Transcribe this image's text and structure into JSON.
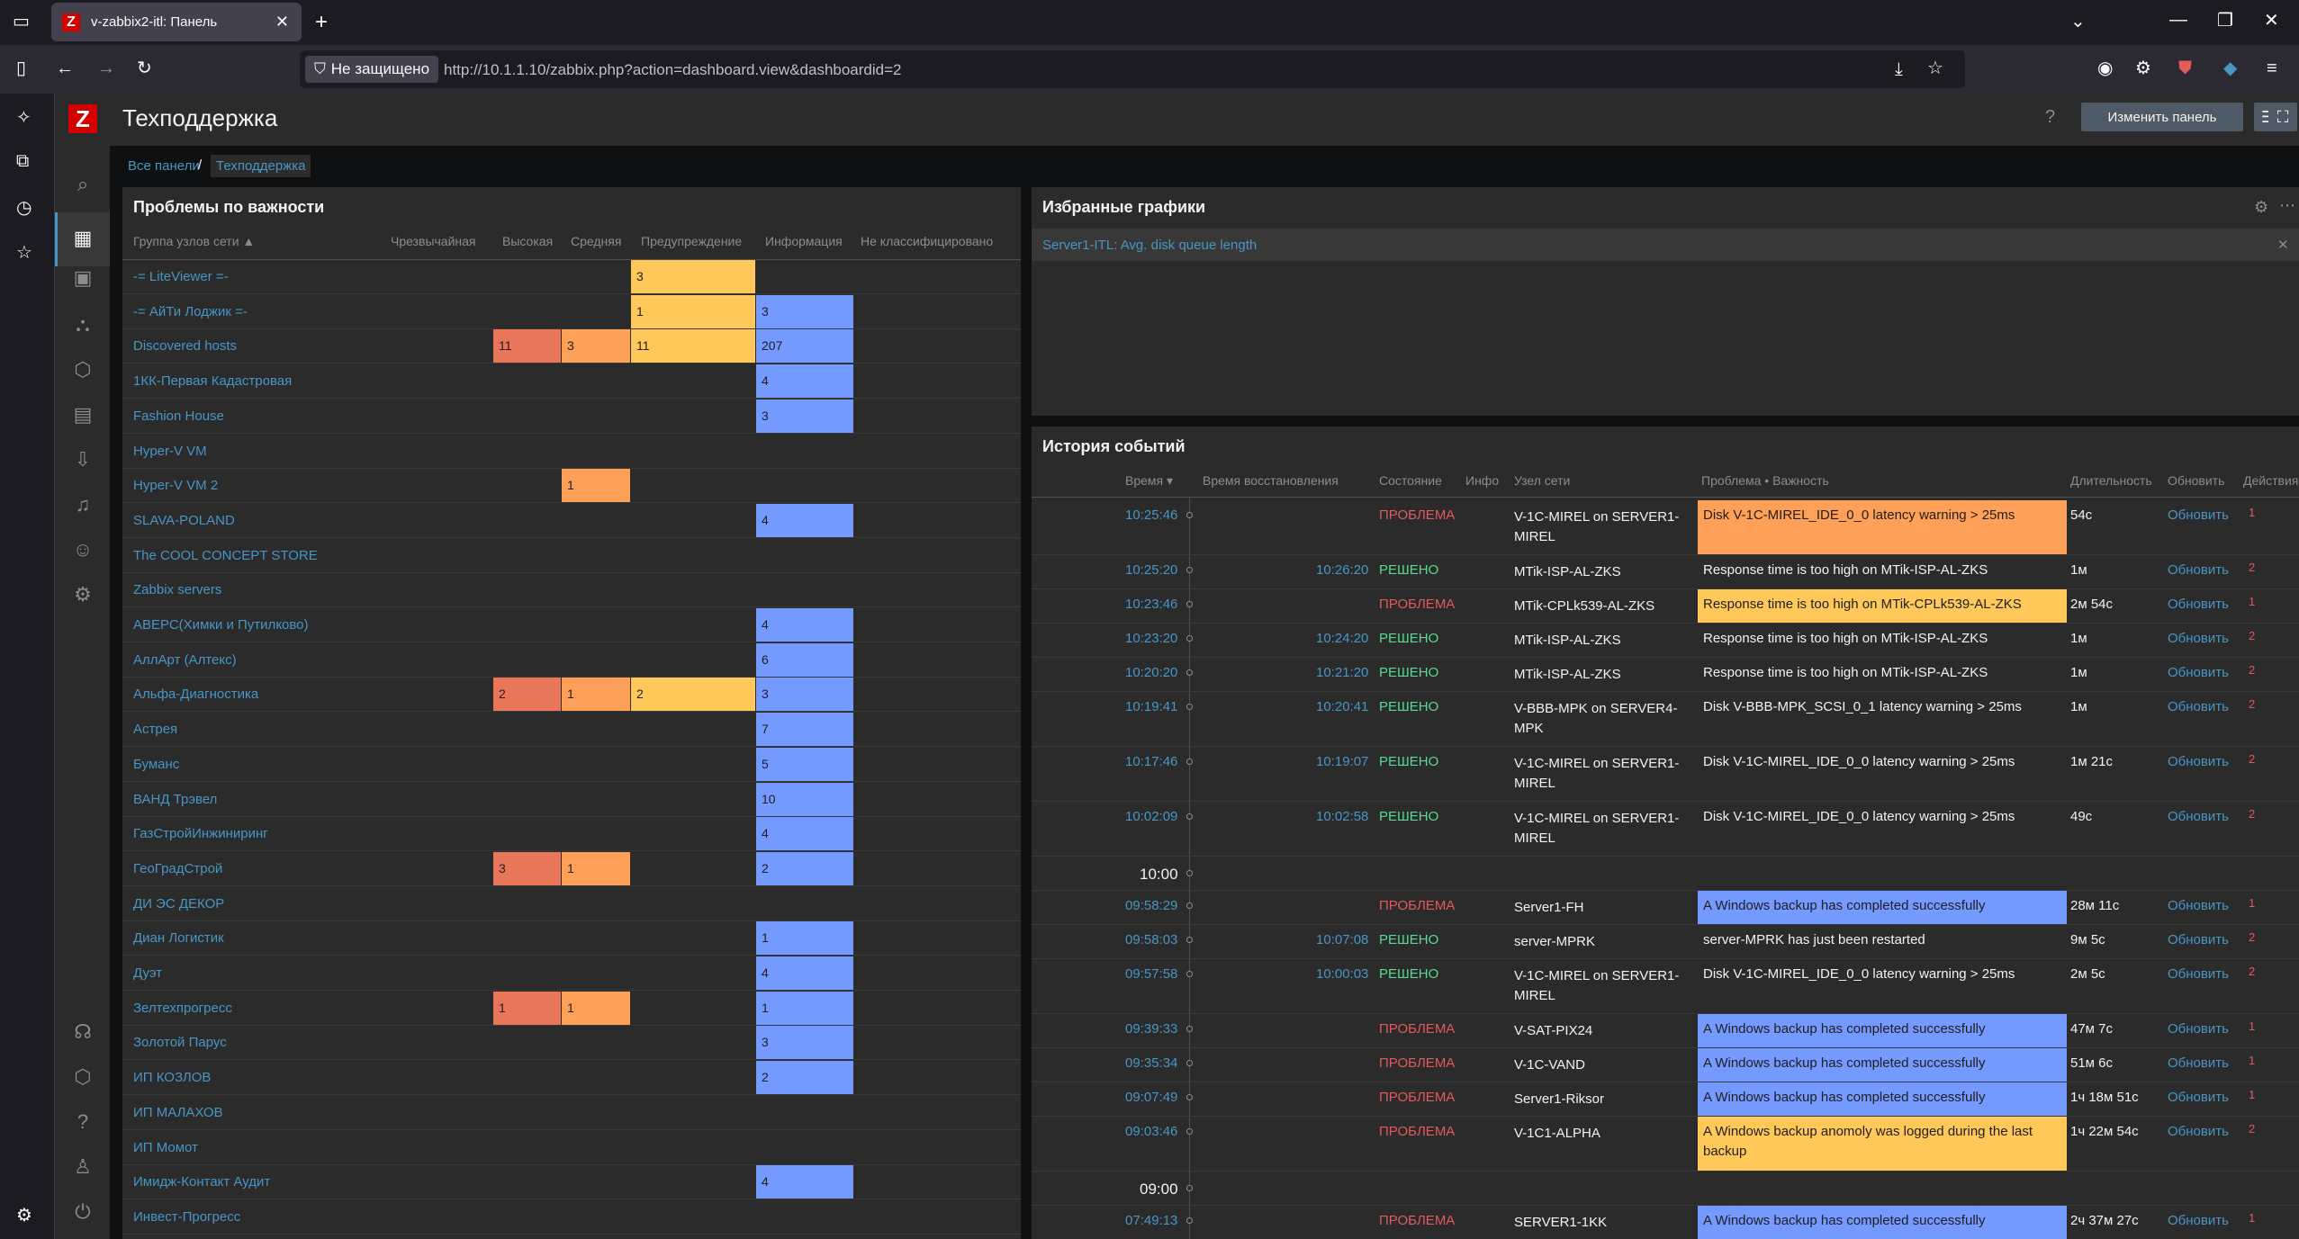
{
  "browser": {
    "tab_title": "v-zabbix2-itl: Панель",
    "tab_favicon": "Z",
    "security_label": "Не защищено",
    "url": "http://10.1.1.10/zabbix.php?action=dashboard.view&dashboardid=2"
  },
  "header": {
    "title": "Техподдержка",
    "help": "?",
    "edit_button": "Изменить панель"
  },
  "breadcrumbs": {
    "all": "Все панели",
    "sep": "/",
    "current": "Техподдержка"
  },
  "problems_widget": {
    "title": "Проблемы по важности",
    "columns": [
      "Группа узлов сети ▲",
      "Чрезвычайная",
      "Высокая",
      "Средняя",
      "Предупреждение",
      "Информация",
      "Не классифицировано"
    ],
    "rows": [
      {
        "group": "-= LiteViewer =-",
        "disaster": "",
        "high": "",
        "average": "",
        "warning": "3",
        "info": ""
      },
      {
        "group": "-= АйТи Лоджик =-",
        "disaster": "",
        "high": "",
        "average": "",
        "warning": "1",
        "info": "3"
      },
      {
        "group": "Discovered hosts",
        "disaster": "",
        "high": "11",
        "average": "3",
        "warning": "11",
        "info": "207"
      },
      {
        "group": "1КК-Первая Кадастровая",
        "disaster": "",
        "high": "",
        "average": "",
        "warning": "",
        "info": "4"
      },
      {
        "group": "Fashion House",
        "disaster": "",
        "high": "",
        "average": "",
        "warning": "",
        "info": "3"
      },
      {
        "group": "Hyper-V VM",
        "disaster": "",
        "high": "",
        "average": "",
        "warning": "",
        "info": ""
      },
      {
        "group": "Hyper-V VM 2",
        "disaster": "",
        "high": "",
        "average": "1",
        "warning": "",
        "info": ""
      },
      {
        "group": "SLAVA-POLAND",
        "disaster": "",
        "high": "",
        "average": "",
        "warning": "",
        "info": "4"
      },
      {
        "group": "The COOL CONCEPT STORE",
        "disaster": "",
        "high": "",
        "average": "",
        "warning": "",
        "info": ""
      },
      {
        "group": "Zabbix servers",
        "disaster": "",
        "high": "",
        "average": "",
        "warning": "",
        "info": ""
      },
      {
        "group": "АВЕРС(Химки и Путилково)",
        "disaster": "",
        "high": "",
        "average": "",
        "warning": "",
        "info": "4"
      },
      {
        "group": "АллАрт (Алтекс)",
        "disaster": "",
        "high": "",
        "average": "",
        "warning": "",
        "info": "6"
      },
      {
        "group": "Альфа-Диагностика",
        "disaster": "",
        "high": "2",
        "average": "1",
        "warning": "2",
        "info": "3"
      },
      {
        "group": "Астрея",
        "disaster": "",
        "high": "",
        "average": "",
        "warning": "",
        "info": "7"
      },
      {
        "group": "Буманс",
        "disaster": "",
        "high": "",
        "average": "",
        "warning": "",
        "info": "5"
      },
      {
        "group": "ВАНД Трэвел",
        "disaster": "",
        "high": "",
        "average": "",
        "warning": "",
        "info": "10"
      },
      {
        "group": "ГазСтройИнжиниринг",
        "disaster": "",
        "high": "",
        "average": "",
        "warning": "",
        "info": "4"
      },
      {
        "group": "ГеоГрадСтрой",
        "disaster": "",
        "high": "3",
        "average": "1",
        "warning": "",
        "info": "2"
      },
      {
        "group": "ДИ ЭС ДЕКОР",
        "disaster": "",
        "high": "",
        "average": "",
        "warning": "",
        "info": ""
      },
      {
        "group": "Диан Логистик",
        "disaster": "",
        "high": "",
        "average": "",
        "warning": "",
        "info": "1"
      },
      {
        "group": "Дуэт",
        "disaster": "",
        "high": "",
        "average": "",
        "warning": "",
        "info": "4"
      },
      {
        "group": "Зелтехпрогресс",
        "disaster": "",
        "high": "1",
        "average": "1",
        "warning": "",
        "info": "1"
      },
      {
        "group": "Золотой Парус",
        "disaster": "",
        "high": "",
        "average": "",
        "warning": "",
        "info": "3"
      },
      {
        "group": "ИП КОЗЛОВ",
        "disaster": "",
        "high": "",
        "average": "",
        "warning": "",
        "info": "2"
      },
      {
        "group": "ИП МАЛАХОВ",
        "disaster": "",
        "high": "",
        "average": "",
        "warning": "",
        "info": ""
      },
      {
        "group": "ИП Момот",
        "disaster": "",
        "high": "",
        "average": "",
        "warning": "",
        "info": ""
      },
      {
        "group": "Имидж-Контакт Аудит",
        "disaster": "",
        "high": "",
        "average": "",
        "warning": "",
        "info": "4"
      },
      {
        "group": "Инвест-Прогресс",
        "disaster": "",
        "high": "",
        "average": "",
        "warning": "",
        "info": ""
      }
    ]
  },
  "graphs_widget": {
    "title": "Избранные графики",
    "item": "Server1-ITL: Avg. disk queue length",
    "remove": "✕"
  },
  "events_widget": {
    "title": "История событий",
    "columns": [
      "Время ▾",
      "Время восстановления",
      "Состояние",
      "Инфо",
      "Узел сети",
      "Проблема • Важность",
      "Длительность",
      "Обновить",
      "Действия"
    ],
    "update_label": "Обновить",
    "rows": [
      {
        "time": "10:25:46",
        "recovery": "",
        "status": "ПРОБЛЕМА",
        "host": "V-1C-MIREL on SERVER1-MIREL",
        "problem": "Disk V-1C-MIREL_IDE_0_0 latency warning > 25ms",
        "severity": "average",
        "duration": "54с",
        "actions": "1",
        "lines": 2
      },
      {
        "time": "10:25:20",
        "recovery": "10:26:20",
        "status": "РЕШЕНО",
        "host": "MTik-ISP-AL-ZKS",
        "problem": "Response time is too high on MTik-ISP-AL-ZKS",
        "severity": "",
        "duration": "1м",
        "actions": "2",
        "lines": 1
      },
      {
        "time": "10:23:46",
        "recovery": "",
        "status": "ПРОБЛЕМА",
        "host": "MTik-CPLk539-AL-ZKS",
        "problem": "Response time is too high on MTik-CPLk539-AL-ZKS",
        "severity": "warning",
        "duration": "2м 54с",
        "actions": "1",
        "lines": 1
      },
      {
        "time": "10:23:20",
        "recovery": "10:24:20",
        "status": "РЕШЕНО",
        "host": "MTik-ISP-AL-ZKS",
        "problem": "Response time is too high on MTik-ISP-AL-ZKS",
        "severity": "",
        "duration": "1м",
        "actions": "2",
        "lines": 1
      },
      {
        "time": "10:20:20",
        "recovery": "10:21:20",
        "status": "РЕШЕНО",
        "host": "MTik-ISP-AL-ZKS",
        "problem": "Response time is too high on MTik-ISP-AL-ZKS",
        "severity": "",
        "duration": "1м",
        "actions": "2",
        "lines": 1
      },
      {
        "time": "10:19:41",
        "recovery": "10:20:41",
        "status": "РЕШЕНО",
        "host": "V-BBB-MPK on SERVER4-MPK",
        "problem": "Disk V-BBB-MPK_SCSI_0_1 latency warning > 25ms",
        "severity": "",
        "duration": "1м",
        "actions": "2",
        "lines": 2
      },
      {
        "time": "10:17:46",
        "recovery": "10:19:07",
        "status": "РЕШЕНО",
        "host": "V-1C-MIREL on SERVER1-MIREL",
        "problem": "Disk V-1C-MIREL_IDE_0_0 latency warning > 25ms",
        "severity": "",
        "duration": "1м 21с",
        "actions": "2",
        "lines": 2
      },
      {
        "time": "10:02:09",
        "recovery": "10:02:58",
        "status": "РЕШЕНО",
        "host": "V-1C-MIREL on SERVER1-MIREL",
        "problem": "Disk V-1C-MIREL_IDE_0_0 latency warning > 25ms",
        "severity": "",
        "duration": "49с",
        "actions": "2",
        "lines": 2
      },
      {
        "divider": "10:00"
      },
      {
        "time": "09:58:29",
        "recovery": "",
        "status": "ПРОБЛЕМА",
        "host": "Server1-FH",
        "problem": "A Windows backup has completed successfully",
        "severity": "info",
        "duration": "28м 11с",
        "actions": "1",
        "lines": 1
      },
      {
        "time": "09:58:03",
        "recovery": "10:07:08",
        "status": "РЕШЕНО",
        "host": "server-MPRK",
        "problem": "server-MPRK has just been restarted",
        "severity": "",
        "duration": "9м 5с",
        "actions": "2",
        "lines": 1
      },
      {
        "time": "09:57:58",
        "recovery": "10:00:03",
        "status": "РЕШЕНО",
        "host": "V-1C-MIREL on SERVER1-MIREL",
        "problem": "Disk V-1C-MIREL_IDE_0_0 latency warning > 25ms",
        "severity": "",
        "duration": "2м 5с",
        "actions": "2",
        "lines": 2
      },
      {
        "time": "09:39:33",
        "recovery": "",
        "status": "ПРОБЛЕМА",
        "host": "V-SAT-PIX24",
        "problem": "A Windows backup has completed successfully",
        "severity": "info",
        "duration": "47м 7с",
        "actions": "1",
        "lines": 1
      },
      {
        "time": "09:35:34",
        "recovery": "",
        "status": "ПРОБЛЕМА",
        "host": "V-1C-VAND",
        "problem": "A Windows backup has completed successfully",
        "severity": "info",
        "duration": "51м 6с",
        "actions": "1",
        "lines": 1
      },
      {
        "time": "09:07:49",
        "recovery": "",
        "status": "ПРОБЛЕМА",
        "host": "Server1-Riksor",
        "problem": "A Windows backup has completed successfully",
        "severity": "info",
        "duration": "1ч 18м 51с",
        "actions": "1",
        "lines": 1
      },
      {
        "time": "09:03:46",
        "recovery": "",
        "status": "ПРОБЛЕМА",
        "host": "V-1C1-ALPHA",
        "problem": "A Windows backup anomoly was logged during the last backup",
        "severity": "warning",
        "duration": "1ч 22м 54с",
        "actions": "2",
        "lines": 2
      },
      {
        "divider": "09:00"
      },
      {
        "time": "07:49:13",
        "recovery": "",
        "status": "ПРОБЛЕМА",
        "host": "SERVER1-1KK",
        "problem": "A Windows backup has completed successfully",
        "severity": "info",
        "duration": "2ч 37м 27с",
        "actions": "1",
        "lines": 1
      }
    ]
  },
  "colors": {
    "high": "#e97659",
    "average": "#ffa059",
    "warning": "#ffc859",
    "info": "#7499ff",
    "problem": "#e45959",
    "resolved": "#59db8f",
    "link": "#4796c4"
  }
}
